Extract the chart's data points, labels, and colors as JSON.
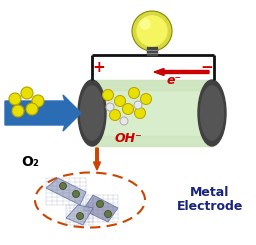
{
  "bg_color": "#ffffff",
  "cylinder_body_color": "#d8edcc",
  "cylinder_body_color2": "#c8e0b8",
  "cylinder_end_color": "#555555",
  "cylinder_end_color2": "#404040",
  "arrow_blue_color": "#2a6db5",
  "o2_label": "O₂",
  "oh_label": "OH⁻",
  "em_label": "e⁻",
  "plus_label": "+",
  "minus_label": "−",
  "metal_label_line1": "Metal",
  "metal_label_line2": "Electrode",
  "metal_label_color": "#1a237e",
  "plus_color": "#cc0000",
  "minus_color": "#cc0000",
  "em_color": "#cc0000",
  "oh_color": "#cc0000",
  "o2_color": "#000000",
  "ball_yellow_color": "#e8e000",
  "ball_yellow_edge": "#b8a000",
  "ball_white_color": "#e8e8e8",
  "ball_white_edge": "#aaaaaa",
  "wire_color": "#111111",
  "bulb_outer_color": "#d8d840",
  "bulb_inner_color": "#f5f560",
  "bulb_glow_color": "#ffff99",
  "bulb_base_color": "#444444",
  "bulb_stem_color": "#888888",
  "dashed_ellipse_color": "#cc4400",
  "orange_arrow_color": "#cc4400",
  "em_arrow_color": "#cc0000",
  "sheet_color1": "#aab0c8",
  "sheet_color2": "#9898b8",
  "sheet_color3": "#b8bcd0",
  "sheet_edge_color": "#6070a0",
  "sheet_dot_color": "#667744",
  "sheet_dot_edge": "#334422"
}
